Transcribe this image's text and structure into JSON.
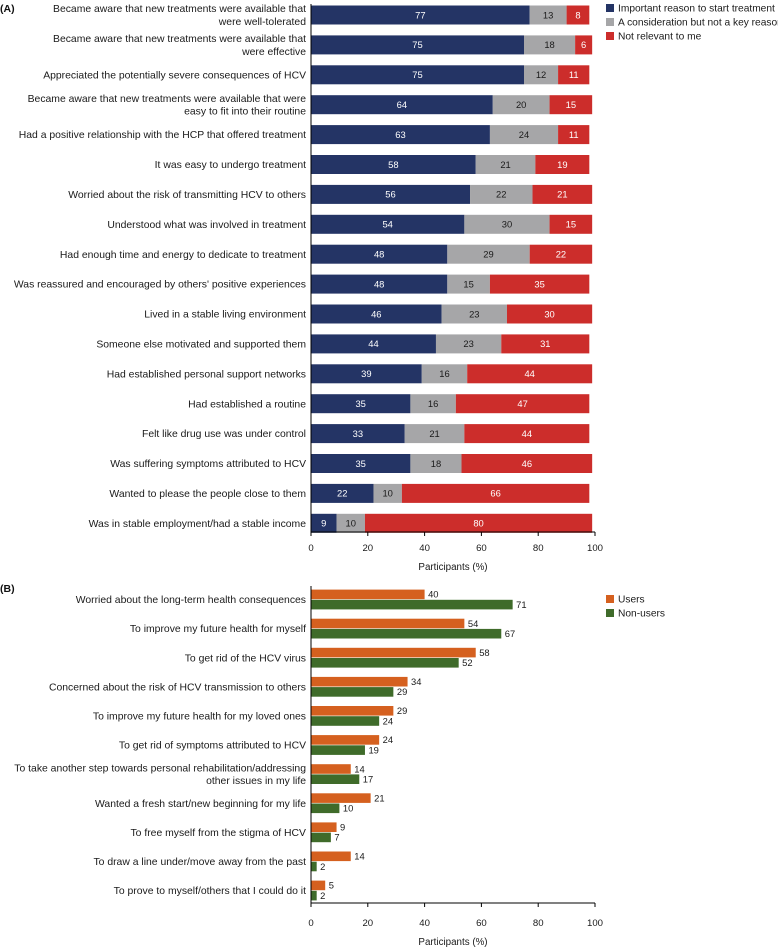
{
  "chart_data": [
    {
      "panel": "(A)",
      "type": "bar",
      "orientation": "horizontal",
      "stacked": true,
      "xlabel": "Participants (%)",
      "xlim": [
        0,
        100
      ],
      "xticks": [
        0,
        20,
        40,
        60,
        80,
        100
      ],
      "legend_position": "top-right",
      "categories": [
        [
          "Became aware that new treatments were available that",
          "were well-tolerated"
        ],
        [
          "Became aware that new treatments were available that",
          "were effective"
        ],
        [
          "Appreciated the potentially severe consequences of HCV"
        ],
        [
          "Became aware that new treatments were available that were",
          "easy to fit into their routine"
        ],
        [
          "Had a positive relationship with the HCP that offered treatment"
        ],
        [
          "It was easy to undergo treatment"
        ],
        [
          "Worried about the risk of transmitting HCV to others"
        ],
        [
          "Understood what was involved in treatment"
        ],
        [
          "Had enough time and energy to dedicate to treatment"
        ],
        [
          "Was reassured and encouraged by others' positive experiences"
        ],
        [
          "Lived in a stable living environment"
        ],
        [
          "Someone else motivated and supported them"
        ],
        [
          "Had established personal support networks"
        ],
        [
          "Had established a routine"
        ],
        [
          "Felt like drug use was under control"
        ],
        [
          "Was suffering symptoms attributed to HCV"
        ],
        [
          "Wanted to please the people close to them"
        ],
        [
          "Was in stable employment/had a stable income"
        ]
      ],
      "series": [
        {
          "name": "Important reason to start treatment",
          "color": "#243465",
          "label_color": "#ffffff",
          "values": [
            77,
            75,
            75,
            64,
            63,
            58,
            56,
            54,
            48,
            48,
            46,
            44,
            39,
            35,
            33,
            35,
            22,
            9
          ]
        },
        {
          "name": "A consideration but not a key reason",
          "color": "#a6a6a8",
          "label_color": "#1a1a1a",
          "values": [
            13,
            18,
            12,
            20,
            24,
            21,
            22,
            30,
            29,
            15,
            23,
            23,
            16,
            16,
            21,
            18,
            10,
            10
          ]
        },
        {
          "name": "Not relevant to me",
          "color": "#cc2d2b",
          "label_color": "#ffffff",
          "values": [
            8,
            6,
            11,
            15,
            11,
            19,
            21,
            15,
            22,
            35,
            30,
            31,
            44,
            47,
            44,
            46,
            66,
            80
          ]
        }
      ]
    },
    {
      "panel": "(B)",
      "type": "bar",
      "orientation": "horizontal",
      "stacked": false,
      "xlabel": "Participants (%)",
      "xlim": [
        0,
        100
      ],
      "xticks": [
        0,
        20,
        40,
        60,
        80,
        100
      ],
      "legend_position": "top-right",
      "categories": [
        [
          "Worried about the long-term health consequences"
        ],
        [
          "To improve my future health for myself"
        ],
        [
          "To get rid of the HCV virus"
        ],
        [
          "Concerned about the risk of HCV transmission to others"
        ],
        [
          "To improve my future health for my loved ones"
        ],
        [
          "To get rid of symptoms attributed to HCV"
        ],
        [
          "To take another step towards personal rehabilitation/addressing",
          "other issues in my life"
        ],
        [
          "Wanted a fresh start/new beginning for my life"
        ],
        [
          "To free myself from the stigma of HCV"
        ],
        [
          "To draw a line under/move away from the past"
        ],
        [
          "To prove to myself/others that I could do it"
        ]
      ],
      "series": [
        {
          "name": "Users",
          "color": "#d5601f",
          "values": [
            40,
            54,
            58,
            34,
            29,
            24,
            14,
            21,
            9,
            14,
            5
          ]
        },
        {
          "name": "Non-users",
          "color": "#3f6b2a",
          "values": [
            71,
            67,
            52,
            29,
            24,
            19,
            17,
            10,
            7,
            2,
            2
          ]
        }
      ]
    }
  ]
}
